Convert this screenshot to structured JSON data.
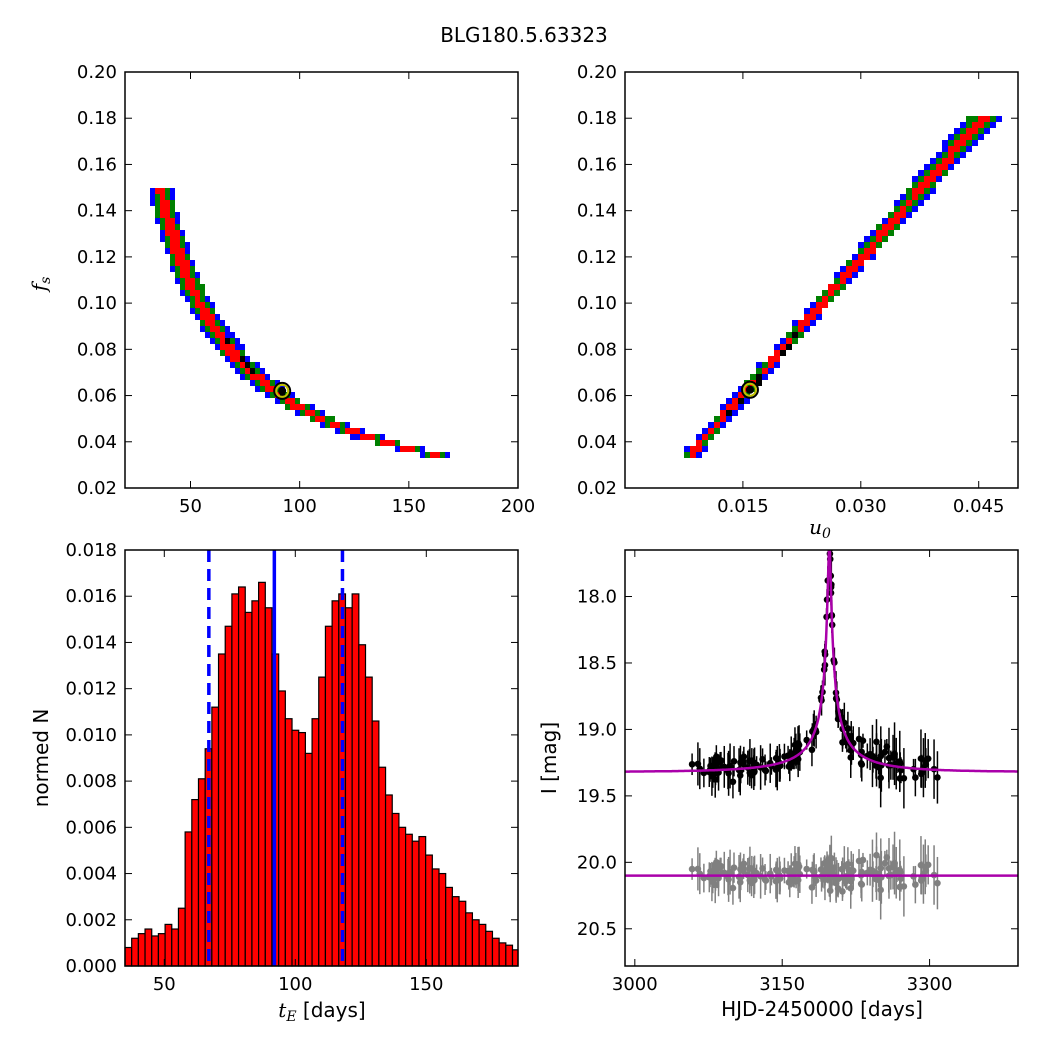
{
  "figure": {
    "title": "BLG180.5.63323"
  },
  "chart_data": [
    {
      "id": "fs-vs-tE",
      "type": "heatmap",
      "xlabel": "",
      "ylabel_main": "f",
      "ylabel_sub": "s",
      "xlim": [
        20,
        200
      ],
      "ylim": [
        0.02,
        0.2
      ],
      "xticks": [
        "50",
        "100",
        "150",
        "200"
      ],
      "xtick_values": [
        50,
        100,
        150,
        200
      ],
      "yticks": [
        "0.02",
        "0.04",
        "0.06",
        "0.08",
        "0.10",
        "0.12",
        "0.14",
        "0.16",
        "0.18",
        "0.20"
      ],
      "ytick_values": [
        0.02,
        0.04,
        0.06,
        0.08,
        0.1,
        0.12,
        0.14,
        0.16,
        0.18,
        0.2
      ],
      "colors": {
        "3sigma": "#0000ff",
        "2sigma": "#008000",
        "1sigma": "#ff0000",
        "best": "#000000",
        "marker_ring": "#bfbf00"
      },
      "relation": {
        "form": "fs = k / tE^p",
        "k": 5.35,
        "p": 1.0
      },
      "domain": [
        36,
        183
      ],
      "best_fit": {
        "x": 92,
        "y": 0.062
      }
    },
    {
      "id": "fs-vs-u0",
      "type": "heatmap",
      "xlabel_main": "u",
      "xlabel_sub": "0",
      "xlim": [
        0.0,
        0.05
      ],
      "ylim": [
        0.02,
        0.2
      ],
      "xticks": [
        "0.015",
        "0.030",
        "0.045"
      ],
      "xtick_values": [
        0.015,
        0.03,
        0.045
      ],
      "yticks": [
        "0.02",
        "0.04",
        "0.06",
        "0.08",
        "0.10",
        "0.12",
        "0.14",
        "0.16",
        "0.18",
        "0.20"
      ],
      "ytick_values": [
        0.02,
        0.04,
        0.06,
        0.08,
        0.1,
        0.12,
        0.14,
        0.16,
        0.18,
        0.2
      ],
      "relation": {
        "form": "fs = 3.93 * u0",
        "slope": 3.93
      },
      "domain": [
        0.0082,
        0.046
      ],
      "best_fit": {
        "x": 0.0159,
        "y": 0.0625
      }
    },
    {
      "id": "tE-histogram",
      "type": "bar",
      "xlabel_main": "t",
      "xlabel_sub": "E",
      "xlabel_rest": "[days]",
      "ylabel": "normed N",
      "xlim": [
        35,
        185
      ],
      "ylim": [
        0.0,
        0.018
      ],
      "xticks": [
        "50",
        "100",
        "150"
      ],
      "xtick_values": [
        50,
        100,
        150
      ],
      "yticks": [
        "0.000",
        "0.002",
        "0.004",
        "0.006",
        "0.008",
        "0.010",
        "0.012",
        "0.014",
        "0.016",
        "0.018"
      ],
      "ytick_values": [
        0.0,
        0.002,
        0.004,
        0.006,
        0.008,
        0.01,
        0.012,
        0.014,
        0.016,
        0.018
      ],
      "bin_start": 35,
      "bin_width": 2.55,
      "values": [
        0.0008,
        0.0012,
        0.0014,
        0.0016,
        0.0013,
        0.0014,
        0.0018,
        0.0016,
        0.0025,
        0.0058,
        0.0072,
        0.0081,
        0.0094,
        0.0112,
        0.0135,
        0.0147,
        0.0161,
        0.0164,
        0.0153,
        0.0158,
        0.0166,
        0.0155,
        0.0135,
        0.0119,
        0.0107,
        0.0102,
        0.0101,
        0.0092,
        0.0107,
        0.0125,
        0.0147,
        0.0158,
        0.0161,
        0.0155,
        0.0161,
        0.0139,
        0.0125,
        0.0106,
        0.0086,
        0.0074,
        0.0066,
        0.006,
        0.0057,
        0.0054,
        0.0056,
        0.0048,
        0.0042,
        0.004,
        0.0034,
        0.003,
        0.0028,
        0.0023,
        0.002,
        0.0018,
        0.0015,
        0.0012,
        0.001,
        0.0009,
        0.0007,
        0.0006,
        0.0004,
        0.0003,
        0.0002,
        0.0001,
        0.0001
      ],
      "lines": [
        {
          "x": 92,
          "style": "solid",
          "color": "#0000ff"
        },
        {
          "x": 67,
          "style": "dashed",
          "color": "#0000ff"
        },
        {
          "x": 118,
          "style": "dashed",
          "color": "#0000ff"
        }
      ],
      "bar_color": "#ff0000"
    },
    {
      "id": "light-curve",
      "type": "scatter",
      "xlabel": "HJD-2450000 [days]",
      "ylabel": "I [mag]",
      "xlim": [
        2990,
        3390
      ],
      "ylim": [
        20.78,
        17.65
      ],
      "y_inverted": true,
      "xticks": [
        "3000",
        "3150",
        "3300"
      ],
      "xtick_values": [
        3000,
        3150,
        3300
      ],
      "yticks": [
        "18.0",
        "18.5",
        "19.0",
        "19.5",
        "20.0",
        "20.5"
      ],
      "ytick_values": [
        18.0,
        18.5,
        19.0,
        19.5,
        20.0,
        20.5
      ],
      "model": {
        "t0": 3198,
        "tE": 92,
        "u0": 0.0159,
        "fs": 0.0625,
        "baseline": 19.32,
        "color": "#aa00aa"
      },
      "residual_baseline": 20.1,
      "series": [
        {
          "name": "",
          "color": "#000000"
        },
        {
          "name": "",
          "color": "#808080"
        }
      ],
      "data_x_range": [
        3058,
        3310
      ],
      "n_points": 170
    }
  ]
}
